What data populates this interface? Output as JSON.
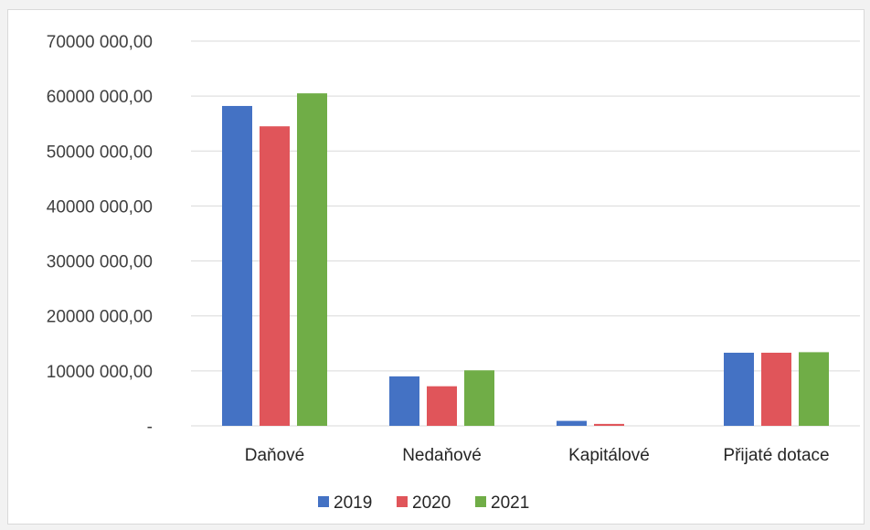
{
  "chart_data": {
    "type": "bar",
    "categories": [
      "Daňové",
      "Nedaňové",
      "Kapitálové",
      "Přijaté dotace"
    ],
    "series": [
      {
        "name": "2019",
        "color": "#4472c4",
        "values": [
          58200000,
          9000000,
          900000,
          13300000
        ]
      },
      {
        "name": "2020",
        "color": "#e0555a",
        "values": [
          54500000,
          7200000,
          350000,
          13300000
        ]
      },
      {
        "name": "2021",
        "color": "#70ad47",
        "values": [
          60500000,
          10100000,
          0,
          13400000
        ]
      }
    ],
    "ylim": [
      0,
      70000000
    ],
    "y_ticks": [
      {
        "value": 0,
        "label": "-"
      },
      {
        "value": 10000000,
        "label": "10000 000,00"
      },
      {
        "value": 20000000,
        "label": "20000 000,00"
      },
      {
        "value": 30000000,
        "label": "30000 000,00"
      },
      {
        "value": 40000000,
        "label": "40000 000,00"
      },
      {
        "value": 50000000,
        "label": "50000 000,00"
      },
      {
        "value": 60000000,
        "label": "60000 000,00"
      },
      {
        "value": 70000000,
        "label": "70000 000,00"
      }
    ],
    "grid": true,
    "legend_position": "bottom",
    "title": "",
    "xlabel": "",
    "ylabel": ""
  }
}
